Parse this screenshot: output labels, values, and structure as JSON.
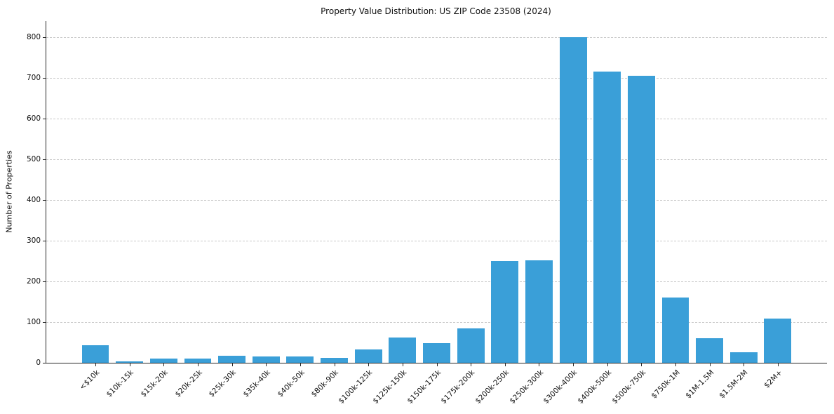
{
  "chart_data": {
    "type": "bar",
    "title": "Property Value Distribution: US ZIP Code 23508 (2024)",
    "xlabel": "",
    "ylabel": "Number of Properties",
    "categories": [
      "<$10k",
      "$10k-15k",
      "$15k-20k",
      "$20k-25k",
      "$25k-30k",
      "$35k-40k",
      "$40k-50k",
      "$80k-90k",
      "$100k-125k",
      "$125k-150k",
      "$150k-175k",
      "$175k-200k",
      "$200k-250k",
      "$250k-300k",
      "$300k-400k",
      "$400k-500k",
      "$500k-750k",
      "$750k-1M",
      "$1M-1.5M",
      "$1.5M-2M",
      "$2M+"
    ],
    "values": [
      43,
      4,
      10,
      10,
      17,
      16,
      16,
      12,
      33,
      62,
      48,
      85,
      250,
      251,
      801,
      716,
      706,
      160,
      60,
      26,
      109
    ],
    "yticks": [
      0,
      100,
      200,
      300,
      400,
      500,
      600,
      700,
      800
    ],
    "ylim": [
      0,
      840
    ],
    "bar_color": "#3a9fd8",
    "grid": true,
    "grid_style": "dashed",
    "legend": "none"
  }
}
